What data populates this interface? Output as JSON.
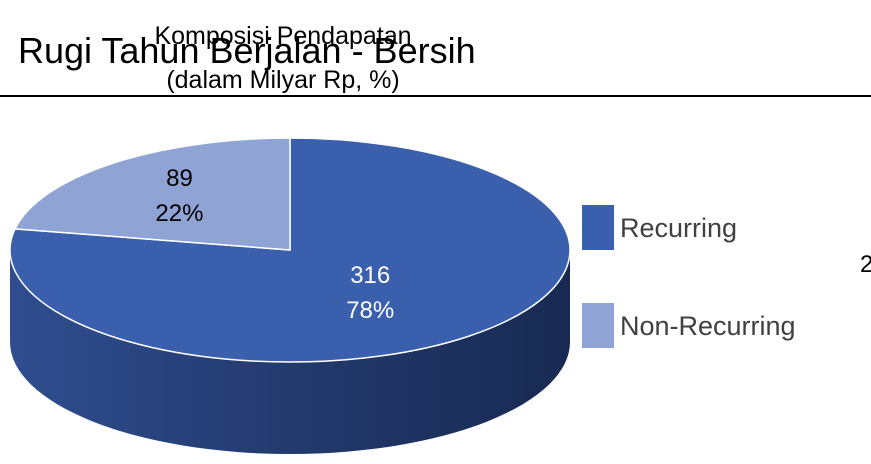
{
  "chart_data": {
    "type": "pie",
    "background_title": "Rugi Tahun Berjalan - Bersih",
    "title": "Komposisi Pendapatan",
    "subtitle": "(dalam Milyar Rp, %)",
    "annotation": "2",
    "categories": [
      "Recurring",
      "Non-Recurring"
    ],
    "values": [
      316,
      89
    ],
    "percentages": [
      78,
      22
    ],
    "percentage_labels": [
      "78%",
      "22%"
    ],
    "colors": [
      "#3a5fad",
      "#8fa3d4"
    ],
    "legend": "right"
  }
}
